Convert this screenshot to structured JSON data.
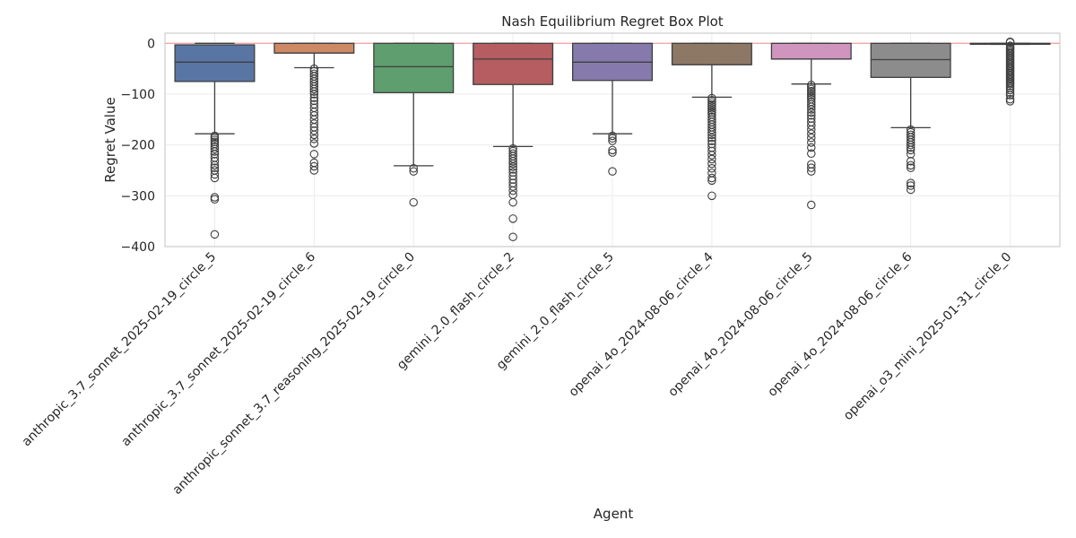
{
  "chart_data": {
    "type": "box",
    "title": "Nash Equilibrium Regret Box Plot",
    "xlabel": "Agent",
    "ylabel": "Regret Value",
    "ylim": [
      -400,
      20
    ],
    "yticks": [
      0,
      -100,
      -200,
      -300,
      -400
    ],
    "ytick_labels": [
      "0",
      "−100",
      "−200",
      "−300",
      "−400"
    ],
    "grid": true,
    "reference_line": {
      "y": 0,
      "color": "#f4a6a6"
    },
    "categories": [
      "anthropic_3.7_sonnet_2025-02-19_circle_5",
      "anthropic_3.7_sonnet_2025-02-19_circle_6",
      "anthropic_sonnet_3.7_reasoning_2025-02-19_circle_0",
      "gemini_2.0_flash_circle_2",
      "gemini_2.0_flash_circle_5",
      "openai_4o_2024-08-06_circle_4",
      "openai_4o_2024-08-06_circle_5",
      "openai_4o_2024-08-06_circle_6",
      "openai_o3_mini_2025-01-31_circle_0"
    ],
    "boxes": [
      {
        "color": "#5875a4",
        "q1": -75,
        "median": -37,
        "q3": -3,
        "whisker_low": -178,
        "whisker_high": 0,
        "outliers": [
          -182,
          -186,
          -190,
          -194,
          -198,
          -203,
          -208,
          -213,
          -218,
          -225,
          -232,
          -240,
          -245,
          -250,
          -258,
          -265,
          -303,
          -307,
          -376
        ]
      },
      {
        "color": "#cc8963",
        "q1": -19,
        "median": -19,
        "q3": 0,
        "whisker_low": -48,
        "whisker_high": 0,
        "outliers": [
          -50,
          -55,
          -60,
          -65,
          -70,
          -75,
          -80,
          -85,
          -90,
          -95,
          -100,
          -107,
          -113,
          -120,
          -127,
          -135,
          -142,
          -150,
          -158,
          -165,
          -172,
          -180,
          -188,
          -197,
          -218,
          -235,
          -242,
          -250
        ]
      },
      {
        "color": "#5f9e6e",
        "q1": -97,
        "median": -46,
        "q3": 0,
        "whisker_low": -241,
        "whisker_high": 0,
        "outliers": [
          -246,
          -252,
          -313
        ]
      },
      {
        "color": "#b55d60",
        "q1": -81,
        "median": -31,
        "q3": 0,
        "whisker_low": -203,
        "whisker_high": 0,
        "outliers": [
          -207,
          -212,
          -217,
          -222,
          -227,
          -232,
          -237,
          -243,
          -248,
          -254,
          -261,
          -268,
          -275,
          -282,
          -290,
          -298,
          -313,
          -345,
          -381
        ]
      },
      {
        "color": "#857aab",
        "q1": -73,
        "median": -37,
        "q3": 0,
        "whisker_low": -178,
        "whisker_high": 0,
        "outliers": [
          -182,
          -187,
          -192,
          -210,
          -215,
          -252
        ]
      },
      {
        "color": "#8d7866",
        "q1": -42,
        "median": -42,
        "q3": 0,
        "whisker_low": -106,
        "whisker_high": 0,
        "outliers": [
          -108,
          -112,
          -116,
          -120,
          -124,
          -128,
          -132,
          -136,
          -140,
          -145,
          -150,
          -155,
          -160,
          -165,
          -170,
          -175,
          -180,
          -186,
          -192,
          -198,
          -205,
          -212,
          -220,
          -228,
          -237,
          -246,
          -255,
          -265,
          -270,
          -300
        ]
      },
      {
        "color": "#d095bf",
        "q1": -31,
        "median": -31,
        "q3": 0,
        "whisker_low": -80,
        "whisker_high": 0,
        "outliers": [
          -82,
          -86,
          -90,
          -94,
          -98,
          -102,
          -106,
          -110,
          -115,
          -120,
          -125,
          -130,
          -136,
          -142,
          -148,
          -155,
          -162,
          -170,
          -178,
          -186,
          -195,
          -205,
          -217,
          -238,
          -245,
          -252,
          -318
        ]
      },
      {
        "color": "#8c8c8c",
        "q1": -67,
        "median": -32,
        "q3": 0,
        "whisker_low": -166,
        "whisker_high": 0,
        "outliers": [
          -170,
          -175,
          -180,
          -185,
          -190,
          -195,
          -200,
          -205,
          -210,
          -218,
          -232,
          -240,
          -245,
          -275,
          -280,
          -288
        ]
      },
      {
        "color": "#c4b676",
        "q1": -1,
        "median": -1,
        "q3": 0,
        "whisker_low": -2,
        "whisker_high": 0,
        "outliers": [
          3,
          2,
          -5,
          -8,
          -11,
          -14,
          -17,
          -20,
          -23,
          -26,
          -29,
          -32,
          -35,
          -38,
          -41,
          -44,
          -47,
          -50,
          -53,
          -56,
          -59,
          -62,
          -65,
          -68,
          -71,
          -74,
          -77,
          -80,
          -84,
          -88,
          -92,
          -97,
          -102,
          -110,
          -114
        ]
      }
    ]
  }
}
